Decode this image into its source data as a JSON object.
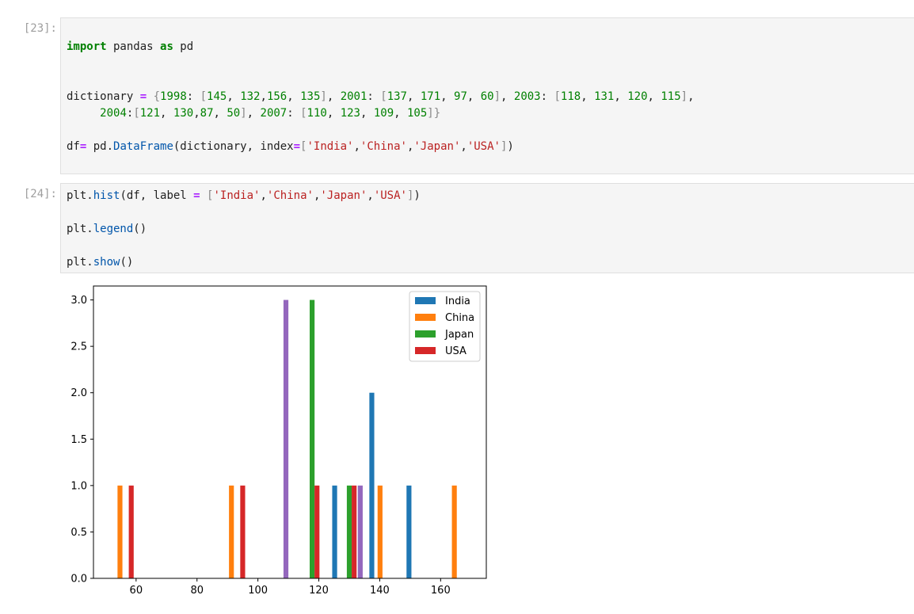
{
  "cells": [
    {
      "prompt": "[23]:",
      "lines": [
        [
          [
            "kw",
            "import"
          ],
          [
            "t",
            " pandas "
          ],
          [
            "kw",
            "as"
          ],
          [
            "t",
            " pd"
          ]
        ],
        [],
        [],
        [
          [
            "t",
            "dictionary "
          ],
          [
            "op",
            "="
          ],
          [
            "t",
            " "
          ],
          [
            "br",
            "{"
          ],
          [
            "num",
            "1998"
          ],
          [
            "t",
            ": "
          ],
          [
            "br",
            "["
          ],
          [
            "num",
            "145"
          ],
          [
            "t",
            ", "
          ],
          [
            "num",
            "132"
          ],
          [
            "t",
            ","
          ],
          [
            "num",
            "156"
          ],
          [
            "t",
            ", "
          ],
          [
            "num",
            "135"
          ],
          [
            "br",
            "]"
          ],
          [
            "t",
            ", "
          ],
          [
            "num",
            "2001"
          ],
          [
            "t",
            ": "
          ],
          [
            "br",
            "["
          ],
          [
            "num",
            "137"
          ],
          [
            "t",
            ", "
          ],
          [
            "num",
            "171"
          ],
          [
            "t",
            ", "
          ],
          [
            "num",
            "97"
          ],
          [
            "t",
            ", "
          ],
          [
            "num",
            "60"
          ],
          [
            "br",
            "]"
          ],
          [
            "t",
            ", "
          ],
          [
            "num",
            "2003"
          ],
          [
            "t",
            ": "
          ],
          [
            "br",
            "["
          ],
          [
            "num",
            "118"
          ],
          [
            "t",
            ", "
          ],
          [
            "num",
            "131"
          ],
          [
            "t",
            ", "
          ],
          [
            "num",
            "120"
          ],
          [
            "t",
            ", "
          ],
          [
            "num",
            "115"
          ],
          [
            "br",
            "]"
          ],
          [
            "t",
            ","
          ]
        ],
        [
          [
            "t",
            "     "
          ],
          [
            "num",
            "2004"
          ],
          [
            "t",
            ":"
          ],
          [
            "br",
            "["
          ],
          [
            "num",
            "121"
          ],
          [
            "t",
            ", "
          ],
          [
            "num",
            "130"
          ],
          [
            "t",
            ","
          ],
          [
            "num",
            "87"
          ],
          [
            "t",
            ", "
          ],
          [
            "num",
            "50"
          ],
          [
            "br",
            "]"
          ],
          [
            "t",
            ", "
          ],
          [
            "num",
            "2007"
          ],
          [
            "t",
            ": "
          ],
          [
            "br",
            "["
          ],
          [
            "num",
            "110"
          ],
          [
            "t",
            ", "
          ],
          [
            "num",
            "123"
          ],
          [
            "t",
            ", "
          ],
          [
            "num",
            "109"
          ],
          [
            "t",
            ", "
          ],
          [
            "num",
            "105"
          ],
          [
            "br",
            "]}"
          ]
        ],
        [],
        [
          [
            "t",
            "df"
          ],
          [
            "op",
            "="
          ],
          [
            "t",
            " pd."
          ],
          [
            "fn",
            "DataFrame"
          ],
          [
            "t",
            "(dictionary, index"
          ],
          [
            "op",
            "="
          ],
          [
            "br",
            "["
          ],
          [
            "str",
            "'India'"
          ],
          [
            "t",
            ","
          ],
          [
            "str",
            "'China'"
          ],
          [
            "t",
            ","
          ],
          [
            "str",
            "'Japan'"
          ],
          [
            "t",
            ","
          ],
          [
            "str",
            "'USA'"
          ],
          [
            "br",
            "]"
          ],
          [
            "t",
            ")"
          ]
        ]
      ]
    },
    {
      "prompt": "[24]:",
      "lines": [
        [
          [
            "t",
            "plt."
          ],
          [
            "fn",
            "hist"
          ],
          [
            "t",
            "(df, label "
          ],
          [
            "op",
            "="
          ],
          [
            "t",
            " "
          ],
          [
            "br",
            "["
          ],
          [
            "str",
            "'India'"
          ],
          [
            "t",
            ","
          ],
          [
            "str",
            "'China'"
          ],
          [
            "t",
            ","
          ],
          [
            "str",
            "'Japan'"
          ],
          [
            "t",
            ","
          ],
          [
            "str",
            "'USA'"
          ],
          [
            "br",
            "]"
          ],
          [
            "t",
            ")"
          ]
        ],
        [],
        [
          [
            "t",
            "plt."
          ],
          [
            "fn",
            "legend"
          ],
          [
            "t",
            "()"
          ]
        ],
        [],
        [
          [
            "t",
            "plt."
          ],
          [
            "fn",
            "show"
          ],
          [
            "t",
            "()"
          ]
        ]
      ]
    }
  ],
  "chart_data": {
    "type": "bar",
    "title": "",
    "xlabel": "",
    "ylabel": "",
    "xlim": [
      46,
      175
    ],
    "ylim": [
      0,
      3.15
    ],
    "xticks": [
      "60",
      "80",
      "100",
      "120",
      "140",
      "160"
    ],
    "yticks": [
      "0.0",
      "0.5",
      "1.0",
      "1.5",
      "2.0",
      "2.5",
      "3.0"
    ],
    "legend_position": "top-right",
    "legend": [
      {
        "name": "India",
        "color": "#1f77b4"
      },
      {
        "name": "China",
        "color": "#ff7f0e"
      },
      {
        "name": "Japan",
        "color": "#2ca02c"
      },
      {
        "name": "USA",
        "color": "#d62728"
      }
    ],
    "series": [
      {
        "name": "India",
        "color": "#1f77b4",
        "bars": [
          {
            "x": 124.4,
            "height": 1
          },
          {
            "x": 136.6,
            "height": 2
          },
          {
            "x": 148.8,
            "height": 1
          }
        ]
      },
      {
        "name": "China",
        "color": "#ff7f0e",
        "bars": [
          {
            "x": 53.9,
            "height": 1
          },
          {
            "x": 90.5,
            "height": 1
          },
          {
            "x": 139.3,
            "height": 1
          },
          {
            "x": 163.7,
            "height": 1
          }
        ]
      },
      {
        "name": "Japan",
        "color": "#2ca02c",
        "bars": [
          {
            "x": 117.0,
            "height": 3
          },
          {
            "x": 129.2,
            "height": 1
          }
        ]
      },
      {
        "name": "USA",
        "color": "#d62728",
        "bars": [
          {
            "x": 57.6,
            "height": 1
          },
          {
            "x": 94.2,
            "height": 1
          },
          {
            "x": 118.6,
            "height": 1
          },
          {
            "x": 130.8,
            "height": 1
          }
        ]
      },
      {
        "color": "#9467bd",
        "bars": [
          {
            "x": 108.4,
            "height": 3
          },
          {
            "x": 132.8,
            "height": 1
          }
        ]
      }
    ]
  }
}
